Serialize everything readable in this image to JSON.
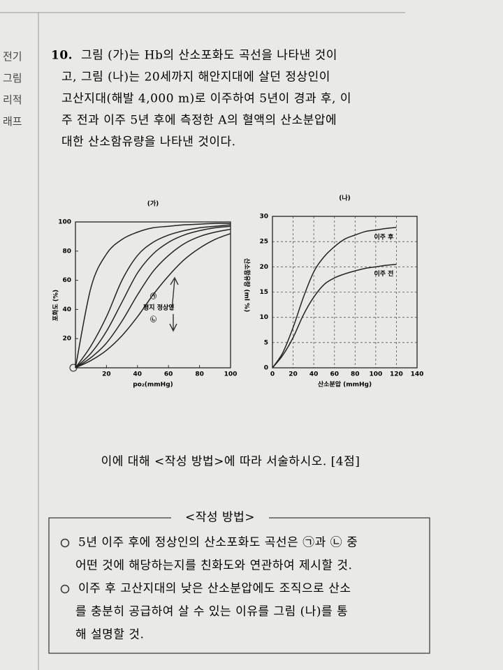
{
  "margin": {
    "lines": [
      "전기",
      "그림",
      "리적",
      "래프"
    ]
  },
  "question": {
    "number": "10.",
    "lines": [
      "그림 (가)는 Hb의 산소포화도 곡선을 나타낸 것이",
      "고, 그림 (나)는 20세까지 해안지대에 살던 정상인이",
      "고산지대(해발 4,000 m)로 이주하여 5년이 경과 후, 이",
      "주 전과 이주 5년 후에 측정한 A의 혈액의 산소분압에",
      "대한 산소함유량을 나타낸 것이다."
    ]
  },
  "chart_data": [
    {
      "type": "line",
      "title": "(가)",
      "x_label": "po₂(mmHg)",
      "y_label": "포화도 (%)",
      "x": [
        0,
        10,
        20,
        30,
        40,
        50,
        60,
        70,
        80,
        90,
        100
      ],
      "series": [
        {
          "color": "#222222",
          "values": [
            0,
            55,
            78,
            88,
            93,
            96,
            97,
            98,
            98.5,
            99,
            99
          ]
        },
        {
          "color": "#222222",
          "values": [
            0,
            15,
            35,
            60,
            77,
            86,
            91,
            94,
            96,
            97,
            98
          ]
        },
        {
          "color": "#222222",
          "values": [
            0,
            10,
            25,
            45,
            65,
            78,
            86,
            91,
            94,
            96,
            97
          ]
        },
        {
          "color": "#222222",
          "values": [
            0,
            7,
            17,
            32,
            50,
            66,
            77,
            85,
            90,
            93,
            95
          ]
        },
        {
          "color": "#222222",
          "values": [
            0,
            5,
            12,
            22,
            35,
            50,
            63,
            74,
            82,
            88,
            92
          ]
        }
      ],
      "xlim": [
        0,
        100
      ],
      "ylim": [
        0,
        100
      ],
      "xticks": [
        20,
        40,
        60,
        80,
        100
      ],
      "yticks": [
        20,
        40,
        60,
        80,
        100
      ],
      "grid": false,
      "annotations": [
        "㉠",
        "평지 정상인",
        "㉡"
      ]
    },
    {
      "type": "line",
      "title": "(나)",
      "x_label": "산소분압 (mmHg)",
      "y_label": "산소함유량 (ml %)",
      "x": [
        0,
        10,
        20,
        30,
        40,
        50,
        60,
        70,
        80,
        90,
        100,
        110,
        120
      ],
      "series": [
        {
          "name": "이주 후",
          "color": "#222222",
          "values": [
            0,
            3,
            8,
            14,
            19,
            22,
            24,
            25.5,
            26.3,
            27,
            27.3,
            27.6,
            27.8
          ]
        },
        {
          "name": "이주 전",
          "color": "#222222",
          "values": [
            0,
            2.5,
            6,
            10.5,
            14,
            16.5,
            17.8,
            18.6,
            19.2,
            19.7,
            20,
            20.3,
            20.5
          ]
        }
      ],
      "xlim": [
        0,
        140
      ],
      "ylim": [
        0,
        30
      ],
      "xticks": [
        0,
        20,
        40,
        60,
        80,
        100,
        120,
        140
      ],
      "yticks": [
        0,
        5,
        10,
        15,
        20,
        25,
        30
      ],
      "grid": true
    }
  ],
  "instruction": "이에 대해 <작성 방법>에 따라 서술하시오. [4점]",
  "method_box": {
    "title": "<작성 방법>",
    "items": [
      [
        "5년 이주 후에 정상인의 산소포화도 곡선은 ㉠과 ㉡ 중",
        "어떤 것에 해당하는지를 친화도와 연관하여 제시할 것."
      ],
      [
        "이주 후 고산지대의 낮은 산소분압에도 조직으로 산소",
        "를 충분히 공급하여 살 수 있는 이유를 그림 (나)를 통",
        "해 설명할 것."
      ]
    ]
  }
}
